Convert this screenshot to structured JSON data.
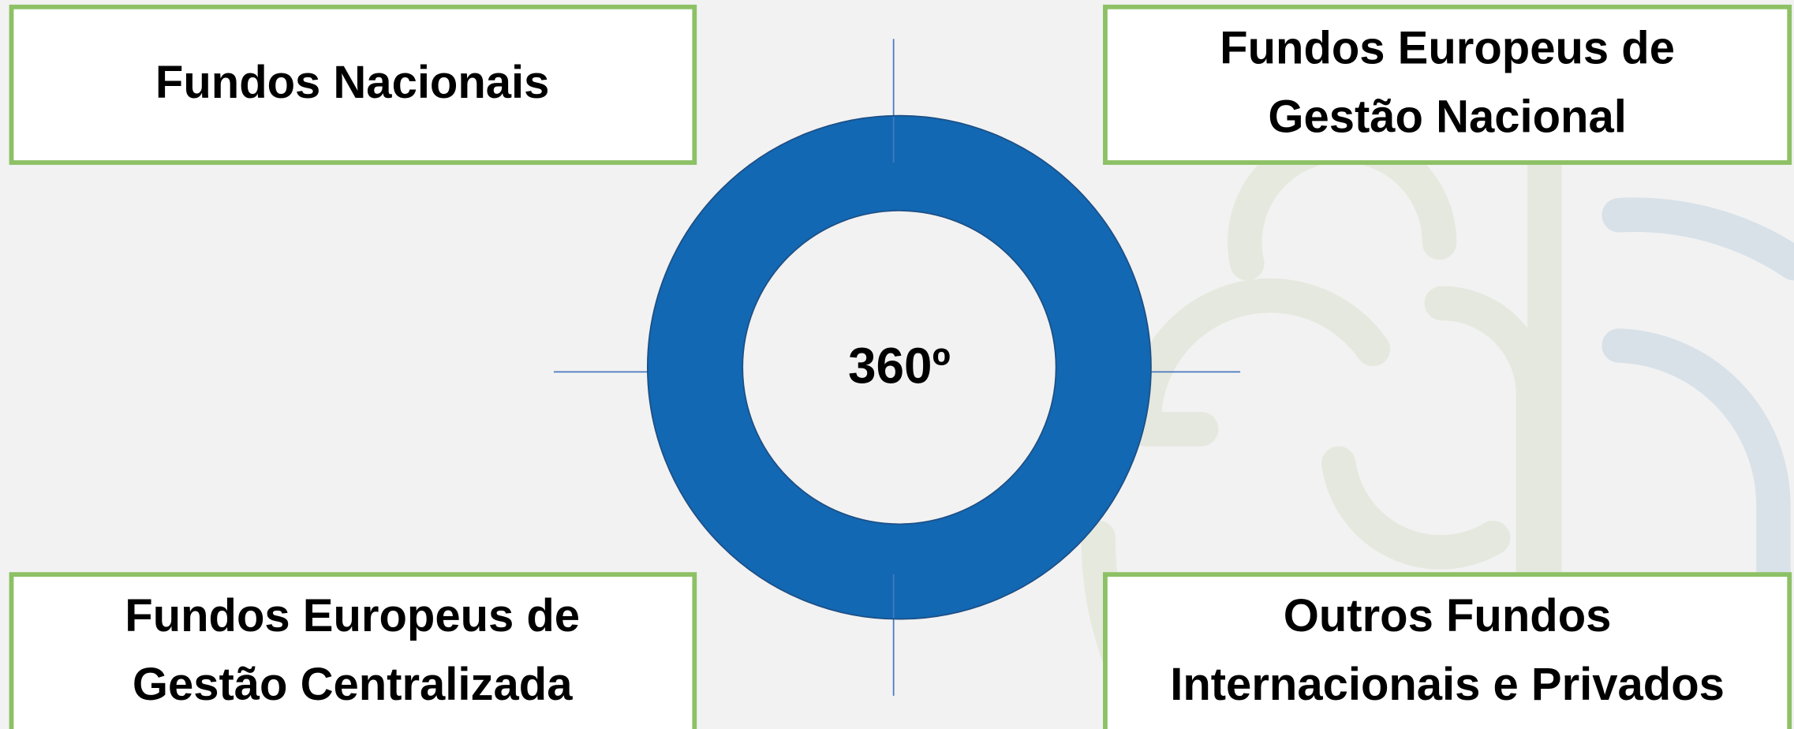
{
  "center": {
    "label": "360º"
  },
  "boxes": [
    {
      "lines": [
        "Fundos Nacionais"
      ]
    },
    {
      "lines": [
        "Fundos Europeus de",
        "Gestão Nacional"
      ]
    },
    {
      "lines": [
        "Fundos Europeus de",
        "Gestão Centralizada"
      ]
    },
    {
      "lines": [
        "Outros Fundos",
        "Internacionais e Privados"
      ]
    }
  ]
}
